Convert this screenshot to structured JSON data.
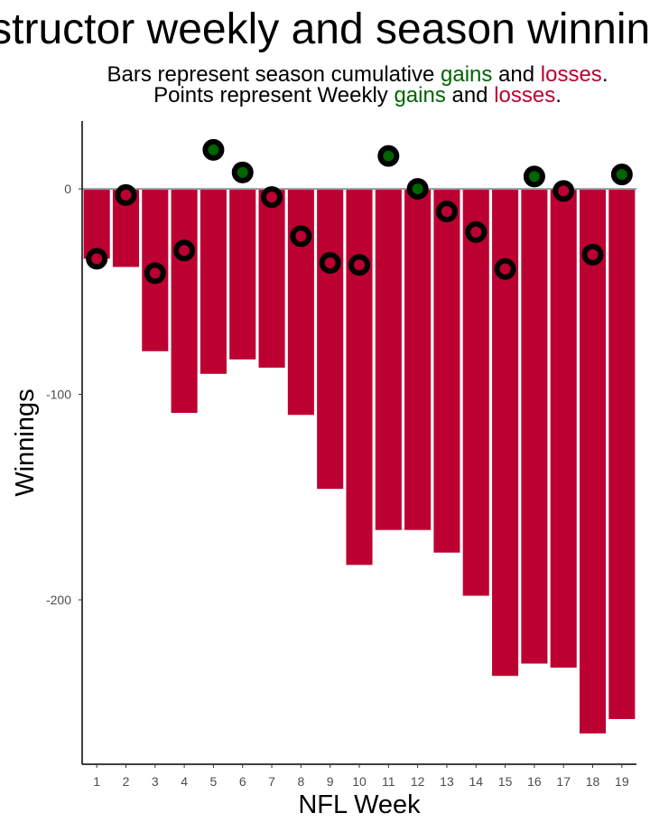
{
  "chart_data": {
    "type": "bar",
    "title": "Instructor weekly and season winnings",
    "subtitle_line1": {
      "prefix": "Bars represent season cumulative ",
      "gains": "gains",
      "middle": " and ",
      "losses": "losses",
      "suffix": "."
    },
    "subtitle_line2": {
      "prefix": "Points represent Weekly ",
      "gains": "gains",
      "middle": " and ",
      "losses": "losses",
      "suffix": "."
    },
    "xlabel": "NFL Week",
    "ylabel": "Winnings",
    "ylim": [
      -280,
      33
    ],
    "y_ticks": [
      0,
      -100,
      -200
    ],
    "y_tick_labels": [
      "0",
      "-100",
      "-200"
    ],
    "categories": [
      1,
      2,
      3,
      4,
      5,
      6,
      7,
      8,
      9,
      10,
      11,
      12,
      13,
      14,
      15,
      16,
      17,
      18,
      19
    ],
    "x_tick_labels": [
      "1",
      "2",
      "3",
      "4",
      "5",
      "6",
      "7",
      "8",
      "9",
      "10",
      "11",
      "12",
      "13",
      "14",
      "15",
      "16",
      "17",
      "18",
      "19"
    ],
    "series": [
      {
        "name": "Season cumulative",
        "mark": "bar",
        "values": [
          -34,
          -38,
          -79,
          -109,
          -90,
          -83,
          -87,
          -110,
          -146,
          -183,
          -166,
          -166,
          -177,
          -198,
          -237,
          -231,
          -233,
          -265,
          -258
        ]
      },
      {
        "name": "Weekly",
        "mark": "point",
        "values": [
          -34,
          -3,
          -41,
          -30,
          19,
          8,
          -4,
          -23,
          -36,
          -37,
          16,
          0,
          -11,
          -21,
          -39,
          6,
          -1,
          -32,
          7
        ]
      }
    ],
    "colors": {
      "gain": "#006400",
      "loss": "#BD0032",
      "point_outline": "#000000",
      "zero_line": "#999999",
      "axis": "#000000"
    },
    "grid": false,
    "legend": "none"
  }
}
